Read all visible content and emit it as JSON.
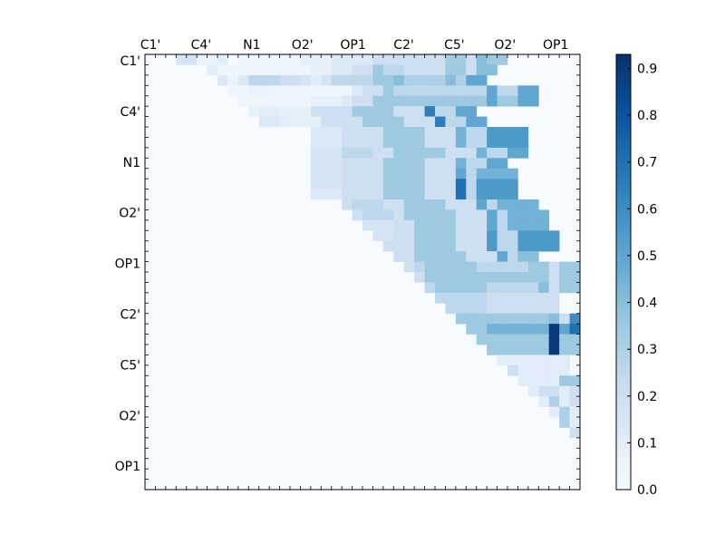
{
  "chart_data": {
    "type": "heatmap",
    "title": "",
    "colormap": "Blues",
    "vmin": 0.0,
    "vmax": 0.93,
    "x_tick_labels": [
      "C1'",
      "C4'",
      "N1",
      "O2'",
      "OP1",
      "C2'",
      "C5'",
      "O2'",
      "OP1"
    ],
    "y_tick_labels": [
      "C1'",
      "C4'",
      "N1",
      "O2'",
      "OP1",
      "C2'",
      "C5'",
      "O2'",
      "OP1"
    ],
    "colorbar_ticks": [
      "0.0",
      "0.1",
      "0.2",
      "0.3",
      "0.4",
      "0.5",
      "0.6",
      "0.7",
      "0.8",
      "0.9"
    ],
    "colorbar_tick_values": [
      0.0,
      0.1,
      0.2,
      0.3,
      0.4,
      0.5,
      0.6,
      0.7,
      0.8,
      0.9
    ],
    "n": 42,
    "values": [
      "000.16.16.06.06.1.04.04.04.04.04.04.04.08.08.08.13.13.13.13.2.2.2.35.2.2.2.2.2.2.2.2.2.2.33.33.2.2.4.4.35.35",
      "000000.1.1.04.04.04.04.04.04.04.04.04.08.08.13.13.2.2.2.26.35.26.26.2.2.2.2.2.2.2.2.35.35.2.2.4.4.4.4",
      "0000000.13.06.13.26.26.26.2.2.2.16.16.1.13.16.26.26.26.26.35.35.4.3.3.3.3.3.3.3.3.3.4.4.3.3.5.5.5.5",
      "00000000.04.04.06.06.04.04.04.04.04.04.04.04.13.2.2.2.26.35.26.26.26.26.26.26.26.26.26.5.5.26.26.5.5.5.5",
      "000000000.04.04.04.04.04.04.04.08.08.08.13.2.2.2.2.35.35.35.35.35.35.35.35.35.35.35.5.5.35.35.5.5.5.5",
      "0000000000.08.1.1.1.1.08.08.08.2.2.2.2.2.2.2.35.35.35.35.35.2.2.2.2.2.65.65.26.26.5.5.5.5",
      "00000000000.13.13.1.1.08.08.08.2.2.2.2.2.2.2.35.35.35.35.35.2.2.2.2.2.65.65.26.26.5.5.5.5",
      "0000000000000000.13.13.13.2.2.2.2.2.2.2.35.35.35.35.35.2.2.2.2.2.45.45.26.26.55.55.55.55",
      "0000000000000000.13.13.13.2.2.2.2.2.2.2.35.35.35.35.35.2.2.2.2.2.45.45.26.26.55.55.55.55",
      "0000000000000000.16.16.16.26.26.26.2.2.2.2.35.35.35.35.35.2.2.2.2.2.45.45.26.26.5.5.5.5",
      "0000000000000000.16.16.16.2.2.2.2.2.2.2.35.35.35.35.35.2.2.2.2.2.45.45.26.26.5.5.5.5",
      "0000000000000000.16.16.16.2.2.2.2.2.2.2.35.35.35.35.35.2.2.2.2.2.5.5.26.26.45.45.45.45",
      "0000000000000000.16.16.16.2.2.2.2.2.2.2.35.35.35.35.35.2.2.2.2.2.7.7.26.26.55.55.55.55",
      "0000000000000000.13.13.13.2.2.2.2.2.2.2.35.35.35.35.35.2.2.2.2.2.7.7.26.26.55.55.55.55",
      "0000000000000000000.2.2.26.26.26.2.2.2.35.35.35.35.35.2.2.2.2.2.5.5.26.26.45.45.45.45",
      "00000000000000000000.2.26.26.26.26.2.2.35.35.35.35.35.2.2.2.2.2.5.5.26.26.45.45.45.45",
      "000000000000000000000.16.16.16.2.2.2.35.35.35.35.35.2.2.2.2.2.5.5.26.26.45.45.45.45",
      "0000000000000000000000.16.16.2.2.2.35.35.35.35.35.2.2.2.2.2.55.55.26.26.55.55.55.55",
      "00000000000000000000000.2.2.2.2.2.35.35.35.35.35.2.2.2.2.2.55.55.26.26.55.55.55.55",
      "000000000000000000000000.2.2.2.2.35.35.35.35.35.2.2.2.2.2.5.5.26.26.4.4.4.4",
      "0000000000000000000000000.2.2.26.35.35.35.35.35.26.26.26.26.26.35.35.2.2.35.35.35.35",
      "00000000000000000000000000.2.26.35.35.35.35.35.35.35.35.35.35.35.35.2.2.35.35.35.35",
      "000000000000000000000000000.26.35.35.35.35.35.26.26.26.26.26.4.4.2.2.35.35.35.35",
      "0000000000000000000000000000.26.26.26.26.26.2.2.2.2.2.2.2.2.2.2.2.2.2",
      "00000000000000000000000000000.26.26.26.26.2.2.2.2.2.2.2.2.2.2.2.2.2.2",
      "000000000000000000000000000000.35.35.35.35.35.35.35.35.35.4.4.2.2.6.6.6.6",
      "0000000000000000000000000000000.35.35.45.45.45.45.45.45.9.9.5.5.7.7.7.7",
      "00000000000000000000000000000000.35.35.35.35.35.35.35.9.9.35.35.35.35.35.35",
      "000000000000000000000000000000000.35.35.35.35.35.35.9.9.35.35.35.35.35.35",
      "0000000000000000000000000000000000.1.1.1.1.1.1.1.1.1.1.1.1.1",
      "00000000000000000000000000000000000.2.1.1.1.1.1.1.1.1.1.1.1",
      "000000000000000000000000000000000000.1.1.1.1.1.1.1.2.35.35.45",
      "0000000000000000000000000000000000000.1.2.2.2.2.1.1.1.2.2",
      "00000000000000000000000000000000000000.1.1.3.3.1.1.2.2",
      "000000000000000000000000000000000000000.1.3.3.1.1.2.2",
      "0000000000000000000000000000000000000000.3.3.1.1.2.2",
      "00000000000000000000000000000000000000000.2.1.1.2.2",
      "000000000000000000000000000000000000000000.1.2.2.3",
      "0000000000000000000000000000000000000000000.2.3.35",
      "00000000000000000000000000000000000000000000.2.2",
      "000000000000000000000000000000000000000000000.2",
      "0000000000000000000000000000000000000000000000"
    ]
  }
}
